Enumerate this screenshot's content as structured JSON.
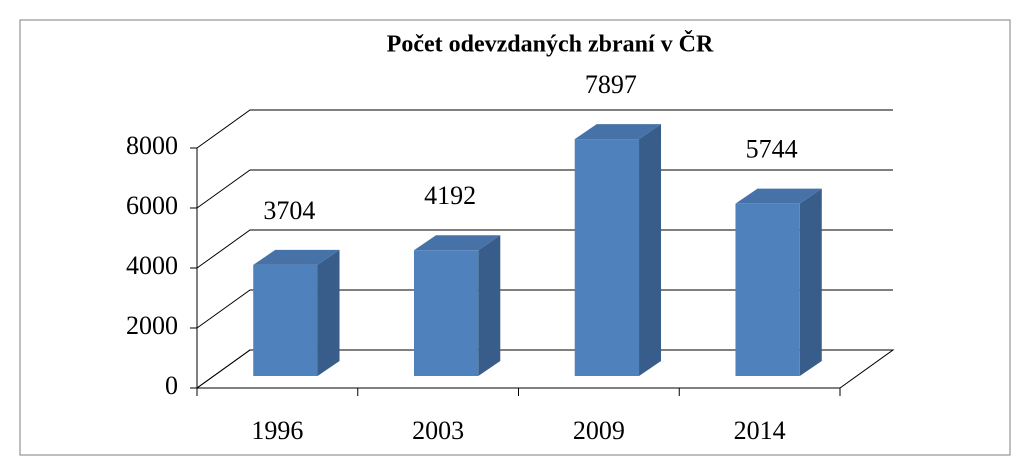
{
  "chart_data": {
    "type": "bar3d",
    "title": "Počet odevzdaných zbraní  v ČR",
    "categories": [
      "1996",
      "2003",
      "2009",
      "2014"
    ],
    "values": [
      3704,
      4192,
      7897,
      5744
    ],
    "color": "#4f81bd",
    "ylim": [
      0,
      8000
    ],
    "yticks": [
      0,
      2000,
      4000,
      6000,
      8000
    ],
    "grid": true
  }
}
